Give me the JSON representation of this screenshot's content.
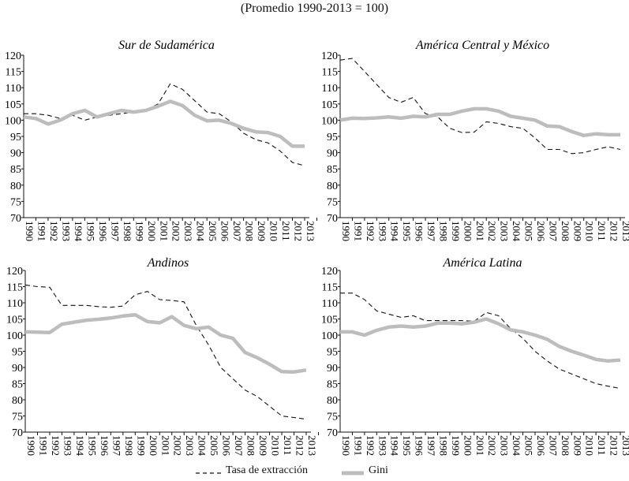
{
  "title": "(Promedio 1990-2013 = 100)",
  "legend": {
    "tasa": "Tasa de extracción",
    "gini": "Gini"
  },
  "colors": {
    "tasa": "#111111",
    "gini": "#bdbdbd"
  },
  "chart_data": [
    {
      "type": "line",
      "title": "Sur de Sudamérica",
      "x": [
        1990,
        1991,
        1992,
        1993,
        1994,
        1995,
        1996,
        1997,
        1998,
        1999,
        2000,
        2001,
        2002,
        2003,
        2004,
        2005,
        2006,
        2007,
        2008,
        2009,
        2010,
        2011,
        2012,
        2013
      ],
      "ylim": [
        70,
        120
      ],
      "yticks": [
        70,
        75,
        80,
        85,
        90,
        95,
        100,
        105,
        110,
        115,
        120
      ],
      "series": [
        {
          "name": "Tasa de extracción",
          "values": [
            102,
            102,
            101.5,
            100.5,
            101.5,
            100,
            101,
            101.5,
            102,
            102.5,
            103,
            105,
            111.2,
            109.5,
            106,
            102.5,
            102,
            99.5,
            96,
            94,
            93,
            90.5,
            87,
            86
          ]
        },
        {
          "name": "Gini",
          "values": [
            101,
            100.5,
            98.8,
            100,
            102,
            103,
            101,
            102,
            103,
            102.5,
            103,
            104.3,
            105.8,
            104.5,
            101.5,
            99.8,
            100,
            99,
            97.5,
            96.4,
            96.2,
            95,
            92,
            92
          ]
        }
      ]
    },
    {
      "type": "line",
      "title": "América Central y México",
      "x": [
        1990,
        1991,
        1992,
        1993,
        1994,
        1995,
        1996,
        1997,
        1998,
        1999,
        2000,
        2001,
        2002,
        2003,
        2004,
        2005,
        2006,
        2007,
        2008,
        2009,
        2010,
        2011,
        2012,
        2013
      ],
      "ylim": [
        70,
        120
      ],
      "yticks": [
        70,
        75,
        80,
        85,
        90,
        95,
        100,
        105,
        110,
        115,
        120
      ],
      "series": [
        {
          "name": "Tasa de extracción",
          "values": [
            118.5,
            119,
            115,
            111,
            107,
            105.5,
            107,
            102,
            101,
            97.5,
            96.2,
            96.3,
            99.5,
            99,
            98,
            97.5,
            94.5,
            91,
            91,
            89.7,
            90,
            91,
            91.8,
            91
          ]
        },
        {
          "name": "Gini",
          "values": [
            100,
            100.6,
            100.5,
            100.7,
            101,
            100.6,
            101.2,
            101,
            101.8,
            101.8,
            102.8,
            103.5,
            103.5,
            102.8,
            101.2,
            100.6,
            100,
            98.2,
            98,
            96.5,
            95.3,
            95.8,
            95.5,
            95.5
          ]
        }
      ]
    },
    {
      "type": "line",
      "title": "Andinos",
      "x": [
        1990,
        1991,
        1992,
        1993,
        1994,
        1995,
        1996,
        1997,
        1998,
        1999,
        2000,
        2001,
        2002,
        2003,
        2004,
        2005,
        2006,
        2007,
        2008,
        2009,
        2010,
        2011,
        2012,
        2013
      ],
      "ylim": [
        70,
        120
      ],
      "yticks": [
        70,
        75,
        80,
        85,
        90,
        95,
        100,
        105,
        110,
        115,
        120
      ],
      "series": [
        {
          "name": "Tasa de extracción",
          "values": [
            115.5,
            115,
            114.8,
            109.2,
            109.2,
            109.2,
            108.8,
            108.6,
            109,
            112.5,
            113.5,
            111,
            110.7,
            110.3,
            103,
            97,
            90,
            86.5,
            83,
            81,
            78,
            75,
            74.5,
            74
          ]
        },
        {
          "name": "Gini",
          "values": [
            101,
            100.9,
            100.8,
            103.4,
            104,
            104.6,
            104.9,
            105.3,
            105.9,
            106.3,
            104.2,
            103.8,
            105.7,
            103,
            102,
            102.5,
            100,
            99,
            94.6,
            93,
            91,
            88.7,
            88.6,
            89.2
          ]
        }
      ]
    },
    {
      "type": "line",
      "title": "América Latina",
      "x": [
        1990,
        1991,
        1992,
        1993,
        1994,
        1995,
        1996,
        1997,
        1998,
        1999,
        2000,
        2001,
        2002,
        2003,
        2004,
        2005,
        2006,
        2007,
        2008,
        2009,
        2010,
        2011,
        2012,
        2013
      ],
      "ylim": [
        70,
        120
      ],
      "yticks": [
        70,
        75,
        80,
        85,
        90,
        95,
        100,
        105,
        110,
        115,
        120
      ],
      "series": [
        {
          "name": "Tasa de extracción",
          "values": [
            113,
            113,
            111,
            107.5,
            106.5,
            105.5,
            106,
            104.5,
            104.5,
            104.5,
            104.5,
            104.3,
            107,
            106,
            102,
            99,
            95,
            92,
            89.5,
            88,
            86.5,
            85,
            84.2,
            83.5
          ]
        },
        {
          "name": "Gini",
          "values": [
            101,
            101,
            100,
            101.5,
            102.5,
            102.8,
            102.5,
            102.8,
            103.7,
            103.7,
            103.5,
            104,
            105,
            103.5,
            101.6,
            101,
            100,
            98.7,
            96.5,
            95,
            93.8,
            92.5,
            92,
            92.3
          ]
        }
      ]
    }
  ]
}
